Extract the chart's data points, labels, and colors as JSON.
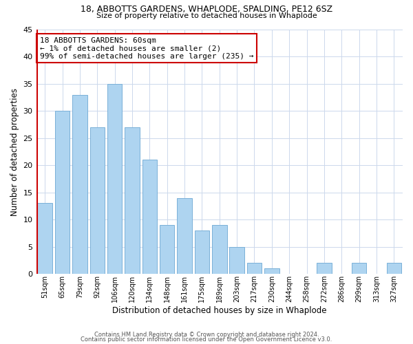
{
  "title1": "18, ABBOTTS GARDENS, WHAPLODE, SPALDING, PE12 6SZ",
  "title2": "Size of property relative to detached houses in Whaplode",
  "xlabel": "Distribution of detached houses by size in Whaplode",
  "ylabel": "Number of detached properties",
  "bar_labels": [
    "51sqm",
    "65sqm",
    "79sqm",
    "92sqm",
    "106sqm",
    "120sqm",
    "134sqm",
    "148sqm",
    "161sqm",
    "175sqm",
    "189sqm",
    "203sqm",
    "217sqm",
    "230sqm",
    "244sqm",
    "258sqm",
    "272sqm",
    "286sqm",
    "299sqm",
    "313sqm",
    "327sqm"
  ],
  "bar_values": [
    13,
    30,
    33,
    27,
    35,
    27,
    21,
    9,
    14,
    8,
    9,
    5,
    2,
    1,
    0,
    0,
    2,
    0,
    2,
    0,
    2
  ],
  "bar_color": "#aed4f0",
  "bar_edge_color": "#7ab0d8",
  "marker_color": "#cc0000",
  "annotation_title": "18 ABBOTTS GARDENS: 60sqm",
  "annotation_line1": "← 1% of detached houses are smaller (2)",
  "annotation_line2": "99% of semi-detached houses are larger (235) →",
  "annotation_box_color": "#ffffff",
  "annotation_box_edge": "#cc0000",
  "ylim": [
    0,
    45
  ],
  "yticks": [
    0,
    5,
    10,
    15,
    20,
    25,
    30,
    35,
    40,
    45
  ],
  "footer1": "Contains HM Land Registry data © Crown copyright and database right 2024.",
  "footer2": "Contains public sector information licensed under the Open Government Licence v3.0.",
  "bg_color": "#ffffff",
  "grid_color": "#ccd8ec"
}
